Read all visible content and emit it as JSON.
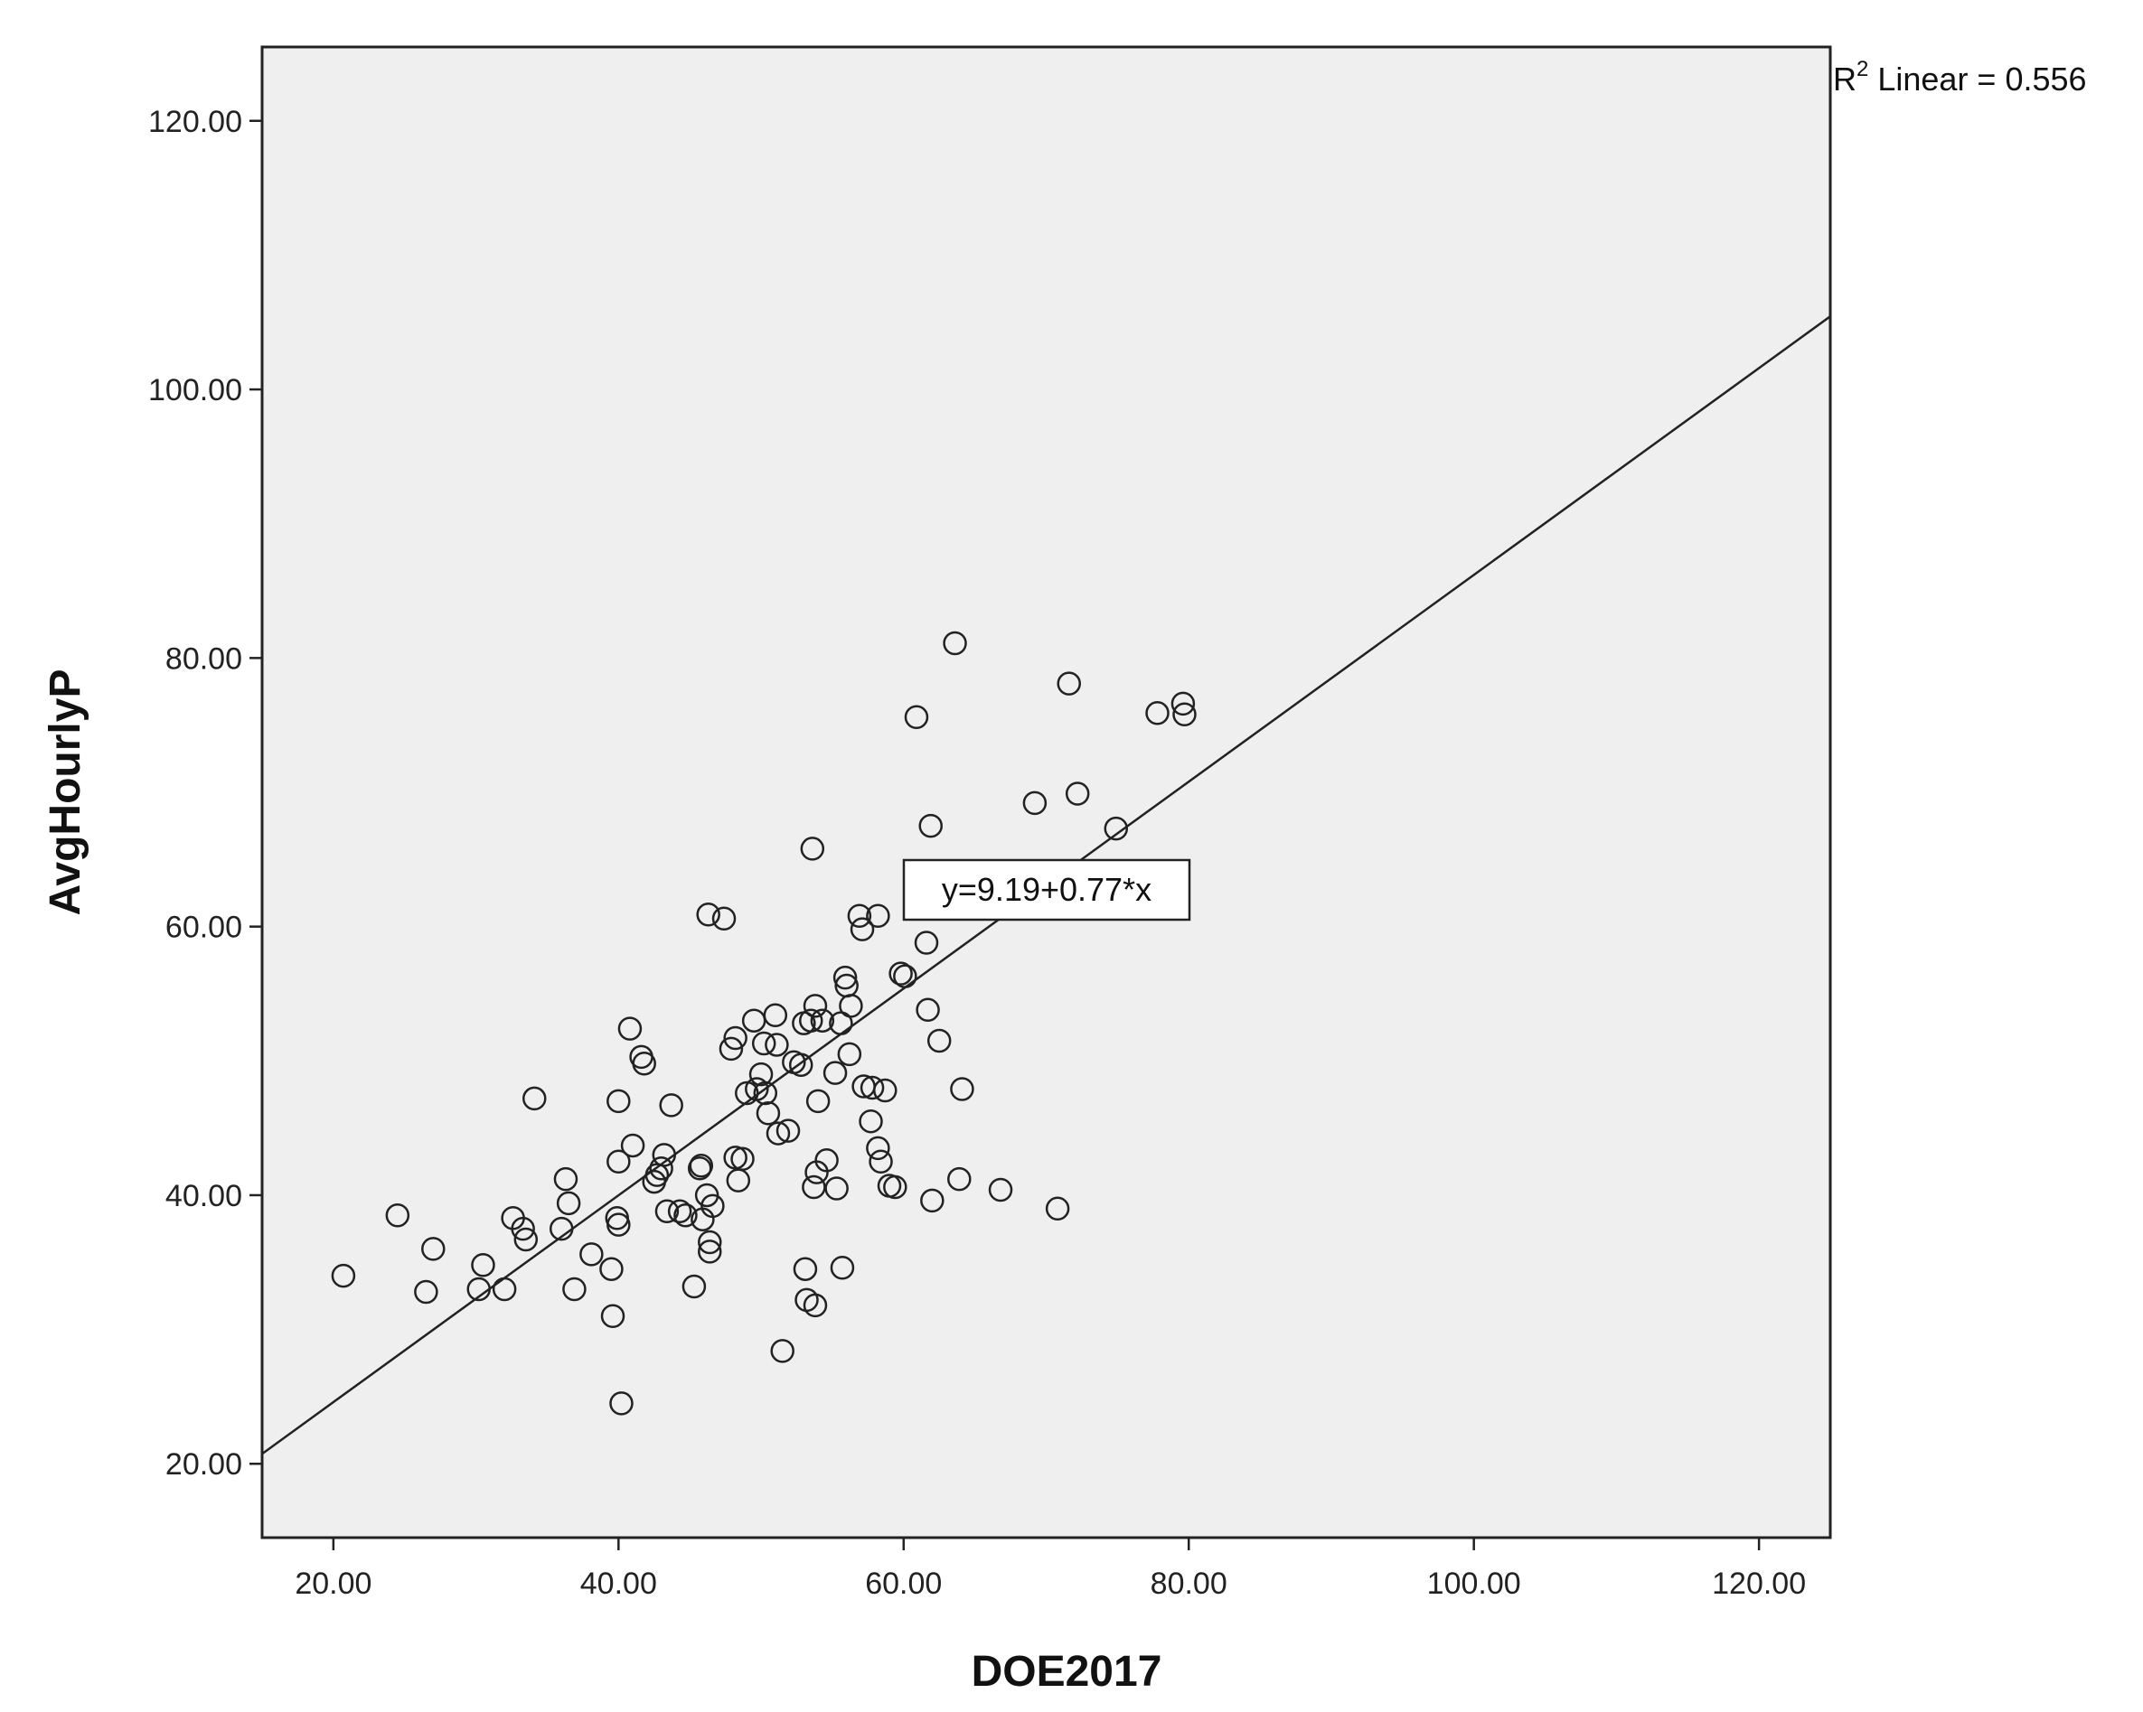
{
  "chart_data": {
    "type": "scatter",
    "title": "",
    "xlabel": "DOE2017",
    "ylabel": "AvgHourlyP",
    "xlim": [
      15,
      125
    ],
    "ylim": [
      14.5,
      125.5
    ],
    "x_ticks": [
      "20.00",
      "40.00",
      "60.00",
      "80.00",
      "100.00",
      "120.00"
    ],
    "y_ticks": [
      "20.00",
      "40.00",
      "60.00",
      "80.00",
      "100.00",
      "120.00"
    ],
    "x_tick_values": [
      20,
      40,
      60,
      80,
      100,
      120
    ],
    "y_tick_values": [
      20,
      40,
      60,
      80,
      100,
      120
    ],
    "grid": false,
    "fit_line": {
      "intercept": 9.19,
      "slope": 0.77,
      "label": "y=9.19+0.77*x"
    },
    "r2_label": {
      "prefix": "R",
      "sup": "2",
      "text": " Linear = 0.556"
    },
    "colors": {
      "plot_bg": "#efefef",
      "marker": "#222222",
      "line": "#222222"
    },
    "points": [
      [
        20.7,
        34.0
      ],
      [
        24.5,
        38.5
      ],
      [
        26.5,
        32.8
      ],
      [
        27.0,
        36.0
      ],
      [
        30.2,
        33.0
      ],
      [
        30.5,
        34.8
      ],
      [
        32.0,
        33.0
      ],
      [
        32.6,
        38.3
      ],
      [
        33.3,
        37.5
      ],
      [
        33.5,
        36.7
      ],
      [
        34.1,
        47.2
      ],
      [
        36.0,
        37.5
      ],
      [
        36.3,
        41.2
      ],
      [
        36.5,
        39.4
      ],
      [
        36.9,
        33.0
      ],
      [
        38.1,
        35.6
      ],
      [
        39.5,
        34.5
      ],
      [
        39.6,
        31.0
      ],
      [
        39.9,
        38.3
      ],
      [
        40.0,
        37.8
      ],
      [
        40.0,
        42.5
      ],
      [
        40.0,
        47.0
      ],
      [
        40.2,
        24.5
      ],
      [
        40.8,
        52.4
      ],
      [
        41.0,
        43.7
      ],
      [
        41.6,
        50.3
      ],
      [
        41.8,
        49.8
      ],
      [
        42.5,
        41.0
      ],
      [
        42.7,
        41.5
      ],
      [
        43.0,
        42.0
      ],
      [
        43.2,
        43.0
      ],
      [
        43.4,
        38.8
      ],
      [
        43.7,
        46.7
      ],
      [
        44.3,
        38.8
      ],
      [
        44.7,
        38.5
      ],
      [
        45.3,
        33.2
      ],
      [
        45.7,
        42.0
      ],
      [
        45.8,
        42.2
      ],
      [
        45.9,
        38.2
      ],
      [
        46.2,
        40.0
      ],
      [
        46.3,
        60.9
      ],
      [
        46.4,
        36.5
      ],
      [
        46.4,
        35.8
      ],
      [
        46.6,
        39.2
      ],
      [
        47.4,
        60.6
      ],
      [
        47.9,
        50.9
      ],
      [
        48.2,
        51.7
      ],
      [
        48.2,
        42.8
      ],
      [
        48.4,
        41.1
      ],
      [
        48.7,
        42.7
      ],
      [
        49.0,
        47.6
      ],
      [
        49.5,
        53.0
      ],
      [
        49.7,
        47.9
      ],
      [
        50.0,
        49.0
      ],
      [
        50.2,
        51.3
      ],
      [
        50.3,
        47.6
      ],
      [
        50.5,
        46.1
      ],
      [
        51.0,
        53.4
      ],
      [
        51.1,
        51.2
      ],
      [
        51.2,
        44.6
      ],
      [
        51.5,
        28.4
      ],
      [
        51.9,
        44.8
      ],
      [
        52.3,
        49.9
      ],
      [
        52.8,
        49.7
      ],
      [
        53.0,
        52.8
      ],
      [
        53.1,
        34.5
      ],
      [
        53.2,
        32.2
      ],
      [
        53.5,
        53.0
      ],
      [
        53.6,
        65.8
      ],
      [
        53.7,
        40.6
      ],
      [
        53.8,
        54.1
      ],
      [
        53.8,
        31.8
      ],
      [
        53.9,
        41.7
      ],
      [
        54.0,
        47.0
      ],
      [
        54.3,
        53.0
      ],
      [
        54.6,
        42.6
      ],
      [
        55.2,
        49.1
      ],
      [
        55.3,
        40.5
      ],
      [
        55.6,
        52.8
      ],
      [
        55.7,
        34.6
      ],
      [
        55.9,
        56.2
      ],
      [
        56.0,
        55.6
      ],
      [
        56.2,
        50.5
      ],
      [
        56.3,
        54.1
      ],
      [
        56.9,
        60.8
      ],
      [
        57.1,
        59.8
      ],
      [
        57.2,
        48.1
      ],
      [
        57.7,
        45.5
      ],
      [
        57.8,
        48.0
      ],
      [
        58.2,
        60.8
      ],
      [
        58.2,
        43.5
      ],
      [
        58.4,
        42.5
      ],
      [
        58.7,
        47.8
      ],
      [
        59.0,
        40.7
      ],
      [
        59.4,
        40.6
      ],
      [
        59.8,
        56.5
      ],
      [
        60.1,
        56.3
      ],
      [
        60.9,
        75.6
      ],
      [
        61.6,
        58.8
      ],
      [
        61.7,
        53.8
      ],
      [
        61.9,
        67.5
      ],
      [
        62.0,
        39.6
      ],
      [
        62.5,
        51.5
      ],
      [
        63.6,
        81.1
      ],
      [
        63.9,
        41.2
      ],
      [
        64.1,
        47.9
      ],
      [
        66.8,
        40.4
      ],
      [
        69.2,
        69.2
      ],
      [
        70.8,
        39.0
      ],
      [
        71.6,
        78.1
      ],
      [
        72.2,
        69.9
      ],
      [
        74.9,
        67.3
      ],
      [
        77.8,
        75.9
      ],
      [
        79.6,
        76.6
      ],
      [
        79.7,
        75.8
      ]
    ]
  }
}
